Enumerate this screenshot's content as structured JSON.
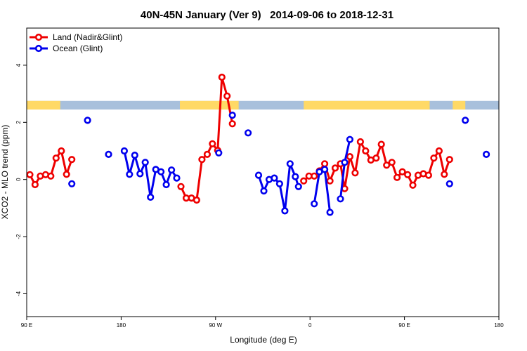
{
  "chart_data": {
    "type": "line",
    "title": "40N-45N January (Ver 9)   2014-09-06 to 2018-12-31",
    "xlabel": "Longitude (deg E)",
    "ylabel": "XCO2 - MLO trend (ppm)",
    "xlim": [
      90,
      540
    ],
    "ylim": [
      -4.8,
      5.3
    ],
    "x_ticks": [
      {
        "value": 90,
        "label": "90 E"
      },
      {
        "value": 180,
        "label": "180"
      },
      {
        "value": 270,
        "label": "90 W"
      },
      {
        "value": 360,
        "label": "0"
      },
      {
        "value": 450,
        "label": "90 E"
      },
      {
        "value": 540,
        "label": "180"
      }
    ],
    "y_ticks": [
      {
        "value": -4,
        "label": "-4"
      },
      {
        "value": -2,
        "label": "-2"
      },
      {
        "value": 0,
        "label": "0"
      },
      {
        "value": 2,
        "label": "2"
      },
      {
        "value": 4,
        "label": "4"
      }
    ],
    "legend_position": "top-left",
    "land_mask_band": {
      "y_range": [
        2.45,
        2.75
      ],
      "land_color": "#ffd966",
      "ocean_color": "#a8c0dc"
    },
    "series": [
      {
        "name": "Land (Nadir&Glint)",
        "color": "#ee0000",
        "segments": [
          [
            [
              93,
              0.17
            ],
            [
              98,
              -0.18
            ],
            [
              103,
              0.12
            ],
            [
              108,
              0.17
            ],
            [
              113,
              0.12
            ],
            [
              118,
              0.75
            ],
            [
              123,
              1.0
            ],
            [
              128,
              0.18
            ],
            [
              133,
              0.7
            ]
          ],
          [
            [
              237,
              -0.25
            ],
            [
              242,
              -0.65
            ],
            [
              247,
              -0.65
            ],
            [
              252,
              -0.72
            ],
            [
              257,
              0.7
            ],
            [
              262,
              0.88
            ],
            [
              267,
              1.25
            ],
            [
              272,
              1.02
            ],
            [
              276,
              3.58
            ],
            [
              281,
              2.92
            ],
            [
              286,
              1.95
            ]
          ],
          [
            [
              354,
              -0.05
            ],
            [
              359,
              0.12
            ],
            [
              364,
              0.12
            ],
            [
              369,
              0.3
            ],
            [
              374,
              0.55
            ],
            [
              379,
              -0.05
            ],
            [
              384,
              0.4
            ],
            [
              389,
              0.55
            ],
            [
              393,
              -0.32
            ],
            [
              398,
              0.8
            ],
            [
              403,
              0.23
            ],
            [
              408,
              1.32
            ],
            [
              413,
              1.0
            ],
            [
              418,
              0.68
            ],
            [
              423,
              0.75
            ],
            [
              428,
              1.23
            ],
            [
              433,
              0.5
            ],
            [
              438,
              0.6
            ],
            [
              443,
              0.07
            ],
            [
              448,
              0.27
            ],
            [
              453,
              0.17
            ],
            [
              458,
              -0.2
            ],
            [
              463,
              0.15
            ],
            [
              468,
              0.2
            ],
            [
              473,
              0.15
            ],
            [
              478,
              0.75
            ],
            [
              483,
              1.0
            ],
            [
              488,
              0.18
            ],
            [
              493,
              0.7
            ]
          ]
        ]
      },
      {
        "name": "Ocean (Glint)",
        "color": "#0000ee",
        "segments": [
          [
            [
              133,
              -0.15
            ]
          ],
          [
            [
              148,
              2.07
            ]
          ],
          [
            [
              168,
              0.88
            ]
          ],
          [
            [
              183,
              1.0
            ],
            [
              188,
              0.18
            ],
            [
              193,
              0.85
            ],
            [
              198,
              0.2
            ],
            [
              203,
              0.6
            ],
            [
              208,
              -0.62
            ],
            [
              213,
              0.35
            ],
            [
              218,
              0.27
            ],
            [
              223,
              -0.18
            ],
            [
              228,
              0.33
            ],
            [
              233,
              0.05
            ]
          ],
          [
            [
              273,
              0.93
            ]
          ],
          [
            [
              286,
              2.25
            ]
          ],
          [
            [
              301,
              1.63
            ]
          ],
          [
            [
              311,
              0.15
            ],
            [
              316,
              -0.4
            ],
            [
              321,
              0.0
            ],
            [
              326,
              0.05
            ],
            [
              331,
              -0.15
            ],
            [
              336,
              -1.1
            ],
            [
              341,
              0.55
            ],
            [
              346,
              0.1
            ],
            [
              349,
              -0.25
            ]
          ],
          [
            [
              364,
              -0.85
            ],
            [
              369,
              0.27
            ],
            [
              374,
              0.35
            ],
            [
              379,
              -1.15
            ]
          ],
          [
            [
              389,
              -0.68
            ],
            [
              393,
              0.6
            ],
            [
              398,
              1.4
            ]
          ],
          [
            [
              493,
              -0.15
            ]
          ],
          [
            [
              508,
              2.07
            ]
          ],
          [
            [
              528,
              0.88
            ]
          ]
        ]
      }
    ]
  }
}
